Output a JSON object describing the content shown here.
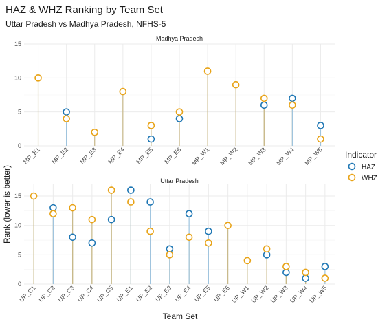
{
  "title": "HAZ & WHZ Ranking by Team Set",
  "subtitle": "Uttar Pradesh vs Madhya Pradesh, NFHS-5",
  "xlabel": "Team Set",
  "ylabel": "Rank (lower is better)",
  "legend": {
    "title": "Indicator",
    "items": [
      {
        "name": "HAZ",
        "color": "#1f77b4"
      },
      {
        "name": "WHZ",
        "color": "#e8a317"
      }
    ]
  },
  "colors": {
    "haz": "#1f77b4",
    "whz": "#e8a317",
    "stem": "#c8b98a",
    "grid": "#ebebeb"
  },
  "chart_data": [
    {
      "type": "scatter",
      "panel": "Madhya Pradesh",
      "ylim": [
        0,
        15
      ],
      "yticks": [
        0,
        5,
        10,
        15
      ],
      "grid": true,
      "legend_position": "right",
      "categories": [
        "MP_E1",
        "MP_E2",
        "MP_E3",
        "MP_E4",
        "MP_E5",
        "MP_E6",
        "MP_W1",
        "MP_W2",
        "MP_W3",
        "MP_W4",
        "MP_W5"
      ],
      "series": [
        {
          "name": "HAZ",
          "values": [
            null,
            5,
            null,
            null,
            1,
            4,
            null,
            null,
            6,
            7,
            3
          ]
        },
        {
          "name": "WHZ",
          "values": [
            10,
            4,
            2,
            8,
            3,
            5,
            11,
            9,
            7,
            6,
            1
          ]
        }
      ]
    },
    {
      "type": "scatter",
      "panel": "Uttar Pradesh",
      "ylim": [
        0,
        17
      ],
      "yticks": [
        0,
        5,
        10,
        15
      ],
      "grid": true,
      "legend_position": "right",
      "categories": [
        "UP_C1",
        "UP_C2",
        "UP_C3",
        "UP_C4",
        "UP_C5",
        "UP_E1",
        "UP_E2",
        "UP_E3",
        "UP_E4",
        "UP_E5",
        "UP_E6",
        "UP_W1",
        "UP_W2",
        "UP_W3",
        "UP_W4",
        "UP_W5"
      ],
      "series": [
        {
          "name": "HAZ",
          "values": [
            null,
            13,
            8,
            7,
            11,
            16,
            14,
            6,
            12,
            9,
            null,
            null,
            5,
            2,
            1,
            3
          ]
        },
        {
          "name": "WHZ",
          "values": [
            15,
            12,
            13,
            11,
            16,
            14,
            9,
            5,
            8,
            7,
            10,
            4,
            6,
            3,
            2,
            1
          ]
        }
      ]
    }
  ]
}
